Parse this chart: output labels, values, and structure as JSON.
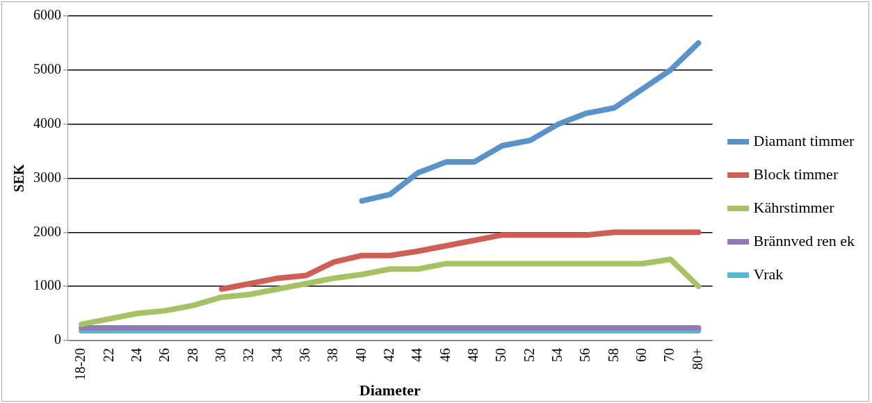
{
  "chart_data": {
    "type": "line",
    "xlabel": "Diameter",
    "ylabel": "SEK",
    "categories": [
      "18-20",
      "22",
      "24",
      "26",
      "28",
      "30",
      "32",
      "34",
      "36",
      "38",
      "40",
      "42",
      "44",
      "46",
      "48",
      "50",
      "52",
      "54",
      "56",
      "58",
      "60",
      "70",
      "80+"
    ],
    "series": [
      {
        "name": "Diamant timmer",
        "color": "#5b93c9",
        "values": [
          null,
          null,
          null,
          null,
          null,
          null,
          null,
          null,
          null,
          null,
          2580,
          2700,
          3100,
          3300,
          3300,
          3600,
          3700,
          4000,
          4200,
          4300,
          4650,
          5000,
          5500
        ]
      },
      {
        "name": "Block timmer",
        "color": "#cd5f57",
        "values": [
          null,
          null,
          null,
          null,
          null,
          950,
          1050,
          1150,
          1200,
          1450,
          1570,
          1570,
          1650,
          1750,
          1850,
          1950,
          1950,
          1950,
          1950,
          2000,
          2000,
          2000,
          2000
        ]
      },
      {
        "name": "Kährstimmer",
        "color": "#a6c264",
        "values": [
          300,
          400,
          500,
          550,
          650,
          800,
          850,
          950,
          1050,
          1150,
          1220,
          1320,
          1320,
          1420,
          1420,
          1420,
          1420,
          1420,
          1420,
          1420,
          1420,
          1500,
          1000
        ]
      },
      {
        "name": "Brännved ren ek",
        "color": "#917ab2",
        "values": [
          230,
          230,
          230,
          230,
          230,
          230,
          230,
          230,
          230,
          230,
          230,
          230,
          230,
          230,
          230,
          230,
          230,
          230,
          230,
          230,
          230,
          230,
          230
        ]
      },
      {
        "name": "Vrak",
        "color": "#55b8cf",
        "values": [
          180,
          180,
          180,
          180,
          180,
          180,
          180,
          180,
          180,
          180,
          180,
          180,
          180,
          180,
          180,
          180,
          180,
          180,
          180,
          180,
          180,
          180,
          180
        ]
      }
    ],
    "ylim": [
      0,
      6000
    ],
    "yticks": [
      0,
      1000,
      2000,
      3000,
      4000,
      5000,
      6000
    ],
    "grid": "y",
    "legend": "right",
    "marker": "none",
    "line_style": "solid"
  }
}
